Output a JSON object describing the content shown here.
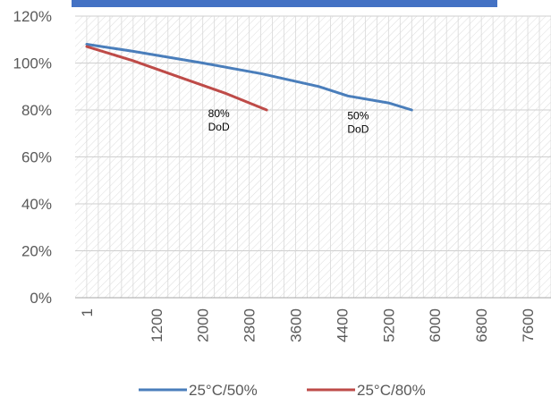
{
  "chart_data": {
    "type": "line",
    "title": "",
    "xlabel": "",
    "ylabel": "",
    "x_tick_labels": [
      "1",
      "1200",
      "2000",
      "2800",
      "3600",
      "4400",
      "5200",
      "6000",
      "6800",
      "7600"
    ],
    "xlim": [
      1,
      8000
    ],
    "y_tick_labels": [
      "0%",
      "20%",
      "40%",
      "60%",
      "80%",
      "100%",
      "120%"
    ],
    "ylim": [
      0,
      120
    ],
    "grid": true,
    "legend_position": "bottom",
    "series": [
      {
        "name": "25°C/50%",
        "color": "#4a7ebb",
        "points": [
          [
            1,
            108
          ],
          [
            800,
            105
          ],
          [
            2000,
            100
          ],
          [
            3000,
            95.5
          ],
          [
            4000,
            90
          ],
          [
            4500,
            86
          ],
          [
            5200,
            83
          ],
          [
            5600,
            80
          ]
        ]
      },
      {
        "name": "25°C/80%",
        "color": "#be4b48",
        "points": [
          [
            1,
            107
          ],
          [
            800,
            101
          ],
          [
            1600,
            94
          ],
          [
            2400,
            87
          ],
          [
            3100,
            80
          ]
        ]
      }
    ],
    "annotations": [
      {
        "line1": "80%",
        "line2": "DoD",
        "x": 2400,
        "y": 77
      },
      {
        "line1": "50%",
        "line2": "DoD",
        "x": 4800,
        "y": 76
      }
    ]
  },
  "header_bar_color": "#4472c4"
}
